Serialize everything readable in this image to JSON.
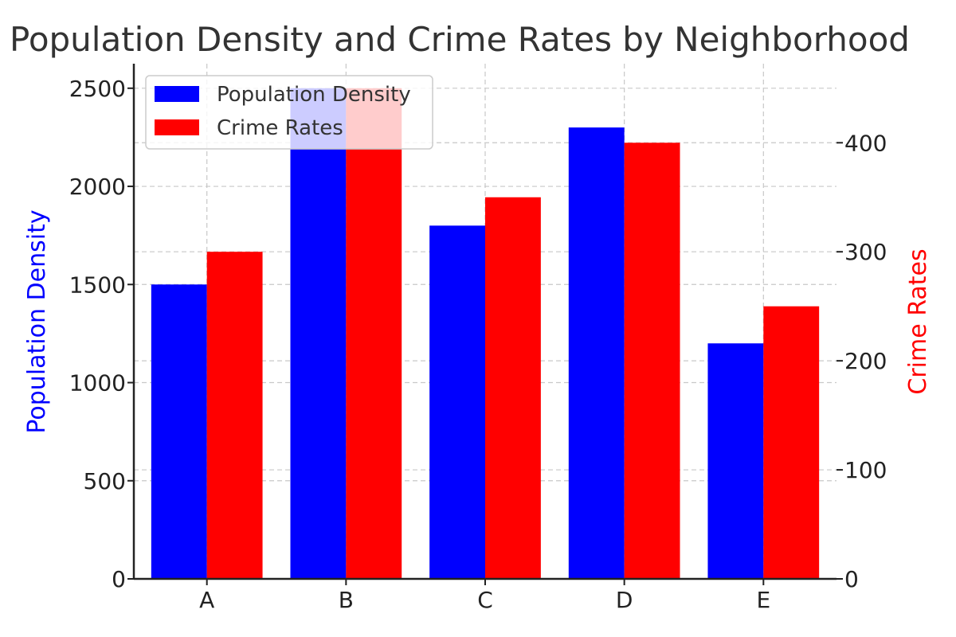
{
  "chart_data": {
    "type": "bar",
    "title": "Population Density and Crime Rates by Neighborhood",
    "categories": [
      "A",
      "B",
      "C",
      "D",
      "E"
    ],
    "series": [
      {
        "name": "Population Density",
        "values": [
          1500,
          2500,
          1800,
          2300,
          1200
        ],
        "color": "#0000ff",
        "axis": "left"
      },
      {
        "name": "Crime Rates",
        "values": [
          300,
          450,
          350,
          400,
          250
        ],
        "color": "#ff0000",
        "axis": "right"
      }
    ],
    "ylabel_left": "Population Density",
    "ylabel_right": "Crime Rates",
    "ylim_left": [
      0,
      2625
    ],
    "ylim_right": [
      0,
      472.5
    ],
    "yticks_left": [
      0,
      500,
      1000,
      1500,
      2000,
      2500
    ],
    "yticks_right": [
      0,
      100,
      200,
      300,
      400
    ],
    "grid": true,
    "legend_position": "top-left",
    "colors": {
      "left_label": "#0000ff",
      "right_label": "#ff0000"
    }
  }
}
